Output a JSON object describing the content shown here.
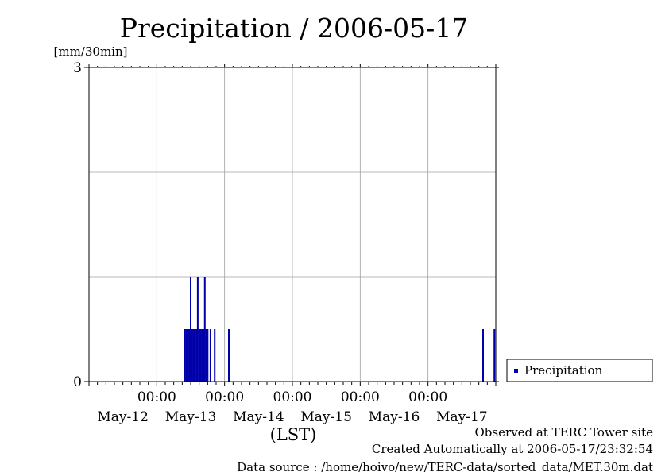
{
  "chart_data": {
    "type": "bar",
    "title": "Precipitation / 2006-05-17",
    "ylabel": "[mm/30min]",
    "xlabel": "(LST)",
    "ylim": [
      0,
      3
    ],
    "y_ticks": [
      0,
      3
    ],
    "y_gridlines": [
      1,
      2
    ],
    "xlim_hours": [
      0,
      144
    ],
    "x_time_ticks": [
      {
        "hour": 24,
        "time": "00:00",
        "date": "May-13"
      },
      {
        "hour": 48,
        "time": "00:00",
        "date": "May-14"
      },
      {
        "hour": 72,
        "time": "00:00",
        "date": "May-15"
      },
      {
        "hour": 96,
        "time": "00:00",
        "date": "May-16"
      },
      {
        "hour": 120,
        "time": "00:00",
        "date": "May-17"
      }
    ],
    "x_date_labels": [
      {
        "hour": 12,
        "label": "May-12"
      },
      {
        "hour": 36,
        "label": "May-13"
      },
      {
        "hour": 60,
        "label": "May-14"
      },
      {
        "hour": 84,
        "label": "May-15"
      },
      {
        "hour": 108,
        "label": "May-16"
      },
      {
        "hour": 132,
        "label": "May-17"
      }
    ],
    "series": [
      {
        "name": "Precipitation",
        "color": "#0000aa",
        "points": [
          {
            "hour": 34.0,
            "value": 0.5
          },
          {
            "hour": 34.5,
            "value": 0.5
          },
          {
            "hour": 35.0,
            "value": 0.5
          },
          {
            "hour": 35.5,
            "value": 0.5
          },
          {
            "hour": 36.0,
            "value": 1.0
          },
          {
            "hour": 36.5,
            "value": 0.5
          },
          {
            "hour": 37.0,
            "value": 0.5
          },
          {
            "hour": 37.5,
            "value": 0.5
          },
          {
            "hour": 38.0,
            "value": 0.5
          },
          {
            "hour": 38.5,
            "value": 1.0
          },
          {
            "hour": 39.0,
            "value": 0.5
          },
          {
            "hour": 39.5,
            "value": 0.5
          },
          {
            "hour": 40.0,
            "value": 0.5
          },
          {
            "hour": 40.5,
            "value": 0.5
          },
          {
            "hour": 41.0,
            "value": 1.0
          },
          {
            "hour": 41.5,
            "value": 0.5
          },
          {
            "hour": 42.0,
            "value": 0.5
          },
          {
            "hour": 43.0,
            "value": 0.5
          },
          {
            "hour": 44.5,
            "value": 0.5
          },
          {
            "hour": 49.5,
            "value": 0.5
          },
          {
            "hour": 139.5,
            "value": 0.5
          },
          {
            "hour": 143.5,
            "value": 0.5
          }
        ]
      }
    ],
    "legend": {
      "label": "Precipitation",
      "placement": "right"
    }
  },
  "footer": {
    "observed": "Observed at TERC Tower site",
    "created": "Created Automatically at 2006-05-17/23:32:54",
    "source": "Data source : /home/hoivo/new/TERC-data/sorted_data/MET.30m.dat"
  },
  "colors": {
    "series": "#0000aa",
    "grid": "#a0a0a0",
    "axis": "#000000"
  }
}
